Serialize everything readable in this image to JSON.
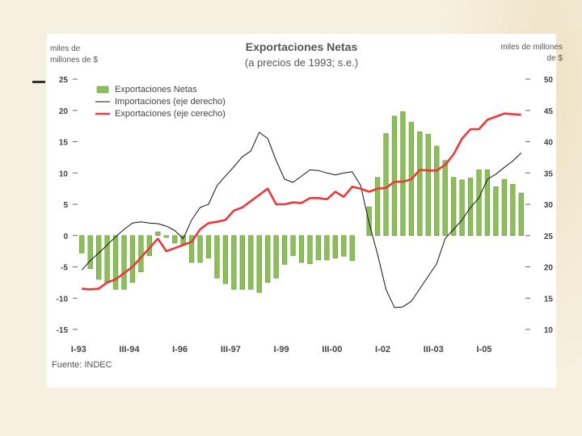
{
  "chart_data": {
    "type": "bar+line",
    "title": "Exportaciones Netas",
    "subtitle": "(a precios de 1993; s.e.)",
    "ylabel_left": "miles de millones de $",
    "ylabel_right": "miles de millones de $",
    "source": "Fuente: INDEC",
    "ylim_left": [
      -15,
      25
    ],
    "ylim_right": [
      10,
      50
    ],
    "left_ticks": [
      25,
      20,
      15,
      10,
      5,
      0,
      -5,
      -10,
      -15
    ],
    "right_ticks": [
      50,
      45,
      40,
      35,
      30,
      25,
      20,
      15,
      10
    ],
    "x_tick_labels": [
      {
        "label": "I-93",
        "index": 0
      },
      {
        "label": "III-94",
        "index": 6
      },
      {
        "label": "I-96",
        "index": 12
      },
      {
        "label": "III-97",
        "index": 18
      },
      {
        "label": "I-99",
        "index": 24
      },
      {
        "label": "III-00",
        "index": 30
      },
      {
        "label": "I-02",
        "index": 36
      },
      {
        "label": "III-03",
        "index": 42
      },
      {
        "label": "I-05",
        "index": 48
      }
    ],
    "n_periods": 53,
    "series": [
      {
        "name": "Exportaciones Netas",
        "kind": "bar",
        "axis": "left",
        "color": "#8cbf5a",
        "values": [
          -2.8,
          -5.3,
          -7,
          -7.5,
          -8.6,
          -8.6,
          -7.5,
          -5.8,
          -3.2,
          0.6,
          -0.3,
          -1.2,
          -1.5,
          -4.3,
          -4.3,
          -3.6,
          -6.8,
          -7.7,
          -8.6,
          -8.6,
          -8.6,
          -9.1,
          -7.5,
          -6.8,
          -4.6,
          -3.2,
          -4.3,
          -4.5,
          -3.9,
          -3.9,
          -3.6,
          -3.3,
          -4,
          0,
          4.6,
          9.3,
          16.3,
          19.1,
          19.8,
          18.1,
          16.6,
          16.2,
          14.3,
          12,
          9.3,
          8.9,
          9.2,
          10.5,
          10.5,
          7.8,
          9,
          8.2,
          6.8
        ]
      },
      {
        "name": "Importaciones (eje derecho)",
        "kind": "line",
        "axis": "right",
        "color": "#111111",
        "values": [
          19.5,
          21,
          22.2,
          23.5,
          24.8,
          26,
          27,
          27.2,
          27,
          26.9,
          26.5,
          25.8,
          24.5,
          27.5,
          29.5,
          30,
          33,
          34.5,
          36,
          37.6,
          38.5,
          41.5,
          40.5,
          37,
          34,
          33.5,
          34.5,
          35.5,
          35.4,
          35,
          34.7,
          35,
          35.2,
          33,
          27,
          22,
          16.4,
          13.5,
          13.6,
          14.5,
          16.5,
          18.5,
          20.5,
          24.5,
          26,
          27.5,
          29.5,
          31,
          34,
          34.8,
          35.9,
          36.9,
          38.2
        ]
      },
      {
        "name": "Exportaciones (eje cerecho)",
        "kind": "line",
        "axis": "right",
        "color": "#e83a3a",
        "values": [
          16.5,
          16.4,
          16.5,
          17.5,
          18,
          19,
          20,
          21.5,
          23,
          24.5,
          22.5,
          23,
          23.5,
          24,
          26,
          27,
          27.2,
          27.5,
          29,
          29.5,
          30.5,
          31.5,
          32.5,
          30,
          30,
          30.3,
          30.2,
          31,
          31,
          30.8,
          32,
          31.2,
          32.8,
          32.5,
          32,
          32.5,
          32.6,
          33.6,
          33.6,
          34,
          35.5,
          35.4,
          35.4,
          36.3,
          38,
          40.5,
          42,
          42,
          43.5,
          44,
          44.5,
          44.4,
          44.3
        ]
      }
    ],
    "legend": [
      {
        "label": "Exportaciones Netas"
      },
      {
        "label": "Importaciones (eje derecho)"
      },
      {
        "label": "Exportaciones (eje cerecho)"
      }
    ]
  }
}
